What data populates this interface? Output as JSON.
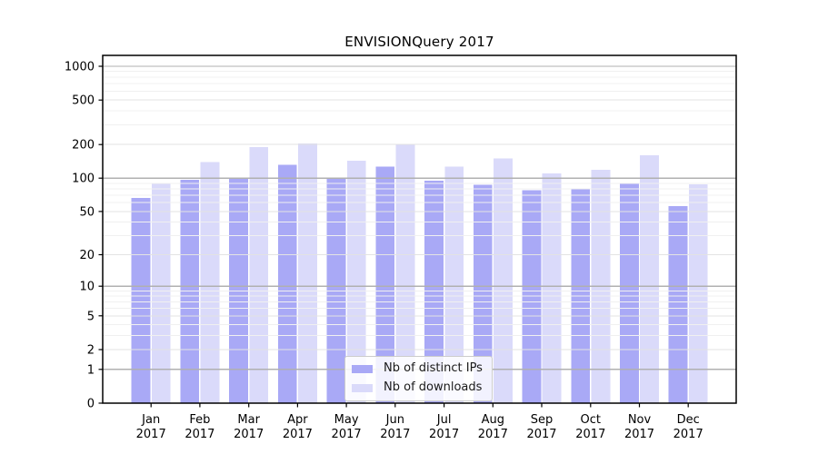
{
  "chart_data": {
    "type": "bar",
    "title": "ENVISIONQuery 2017",
    "categories": [
      "Jan 2017",
      "Feb 2017",
      "Mar 2017",
      "Apr 2017",
      "May 2017",
      "Jun 2017",
      "Jul 2017",
      "Aug 2017",
      "Sep 2017",
      "Oct 2017",
      "Nov 2017",
      "Dec 2017"
    ],
    "series": [
      {
        "name": "Nb of distinct IPs",
        "color": "#a9a9f6",
        "values": [
          66,
          97,
          101,
          132,
          98,
          127,
          95,
          87,
          78,
          80,
          90,
          56
        ]
      },
      {
        "name": "Nb of downloads",
        "color": "#dadafa",
        "values": [
          90,
          140,
          190,
          204,
          143,
          199,
          127,
          150,
          110,
          119,
          160,
          88
        ]
      }
    ],
    "xlabel": "",
    "ylabel": "",
    "yscale": "log1p",
    "yticks": [
      0,
      1,
      2,
      5,
      10,
      20,
      50,
      100,
      200,
      500,
      1000
    ],
    "ylim": [
      0,
      1233
    ],
    "grid": true,
    "legend_position": "lower-center",
    "colors": {
      "background": "#ffffff",
      "axis": "#000000",
      "grid_decade": "#b0b0b0",
      "grid_tick": "#e3e3e3",
      "grid_minor": "#f0f0f0",
      "legend_border": "#cccccc",
      "text": "#000000"
    }
  }
}
